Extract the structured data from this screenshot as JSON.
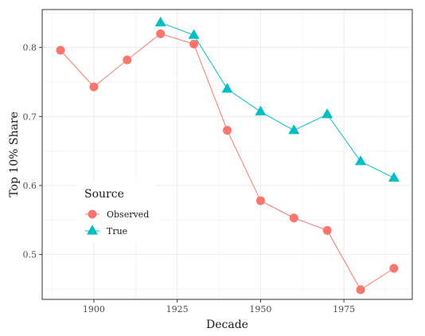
{
  "chart_data": {
    "type": "line",
    "title": "",
    "xlabel": "Decade",
    "ylabel": "Top 10% Share",
    "xlim": [
      1884.5,
      1995.5
    ],
    "ylim": [
      0.435,
      0.855
    ],
    "x_ticks": [
      1900,
      1925,
      1950,
      1975
    ],
    "x_tick_labels": [
      "1900",
      "1925",
      "1950",
      "1975"
    ],
    "y_ticks": [
      0.5,
      0.6,
      0.7,
      0.8
    ],
    "y_tick_labels": [
      "0.5",
      "0.6",
      "0.7",
      "0.8"
    ],
    "grid": true,
    "legend": {
      "title": "Source",
      "placement": "lower-left"
    },
    "series": [
      {
        "name": "Observed",
        "color": "#F8766D",
        "marker": "circle",
        "x": [
          1890,
          1900,
          1910,
          1920,
          1930,
          1940,
          1950,
          1960,
          1970,
          1980,
          1990
        ],
        "values": [
          0.796,
          0.743,
          0.782,
          0.82,
          0.805,
          0.68,
          0.578,
          0.553,
          0.535,
          0.449,
          0.48
        ]
      },
      {
        "name": "True",
        "color": "#00BFC4",
        "marker": "triangle",
        "x": [
          1920,
          1930,
          1940,
          1950,
          1960,
          1970,
          1980,
          1990
        ],
        "values": [
          0.836,
          0.818,
          0.74,
          0.707,
          0.68,
          0.703,
          0.635,
          0.611
        ]
      }
    ]
  }
}
